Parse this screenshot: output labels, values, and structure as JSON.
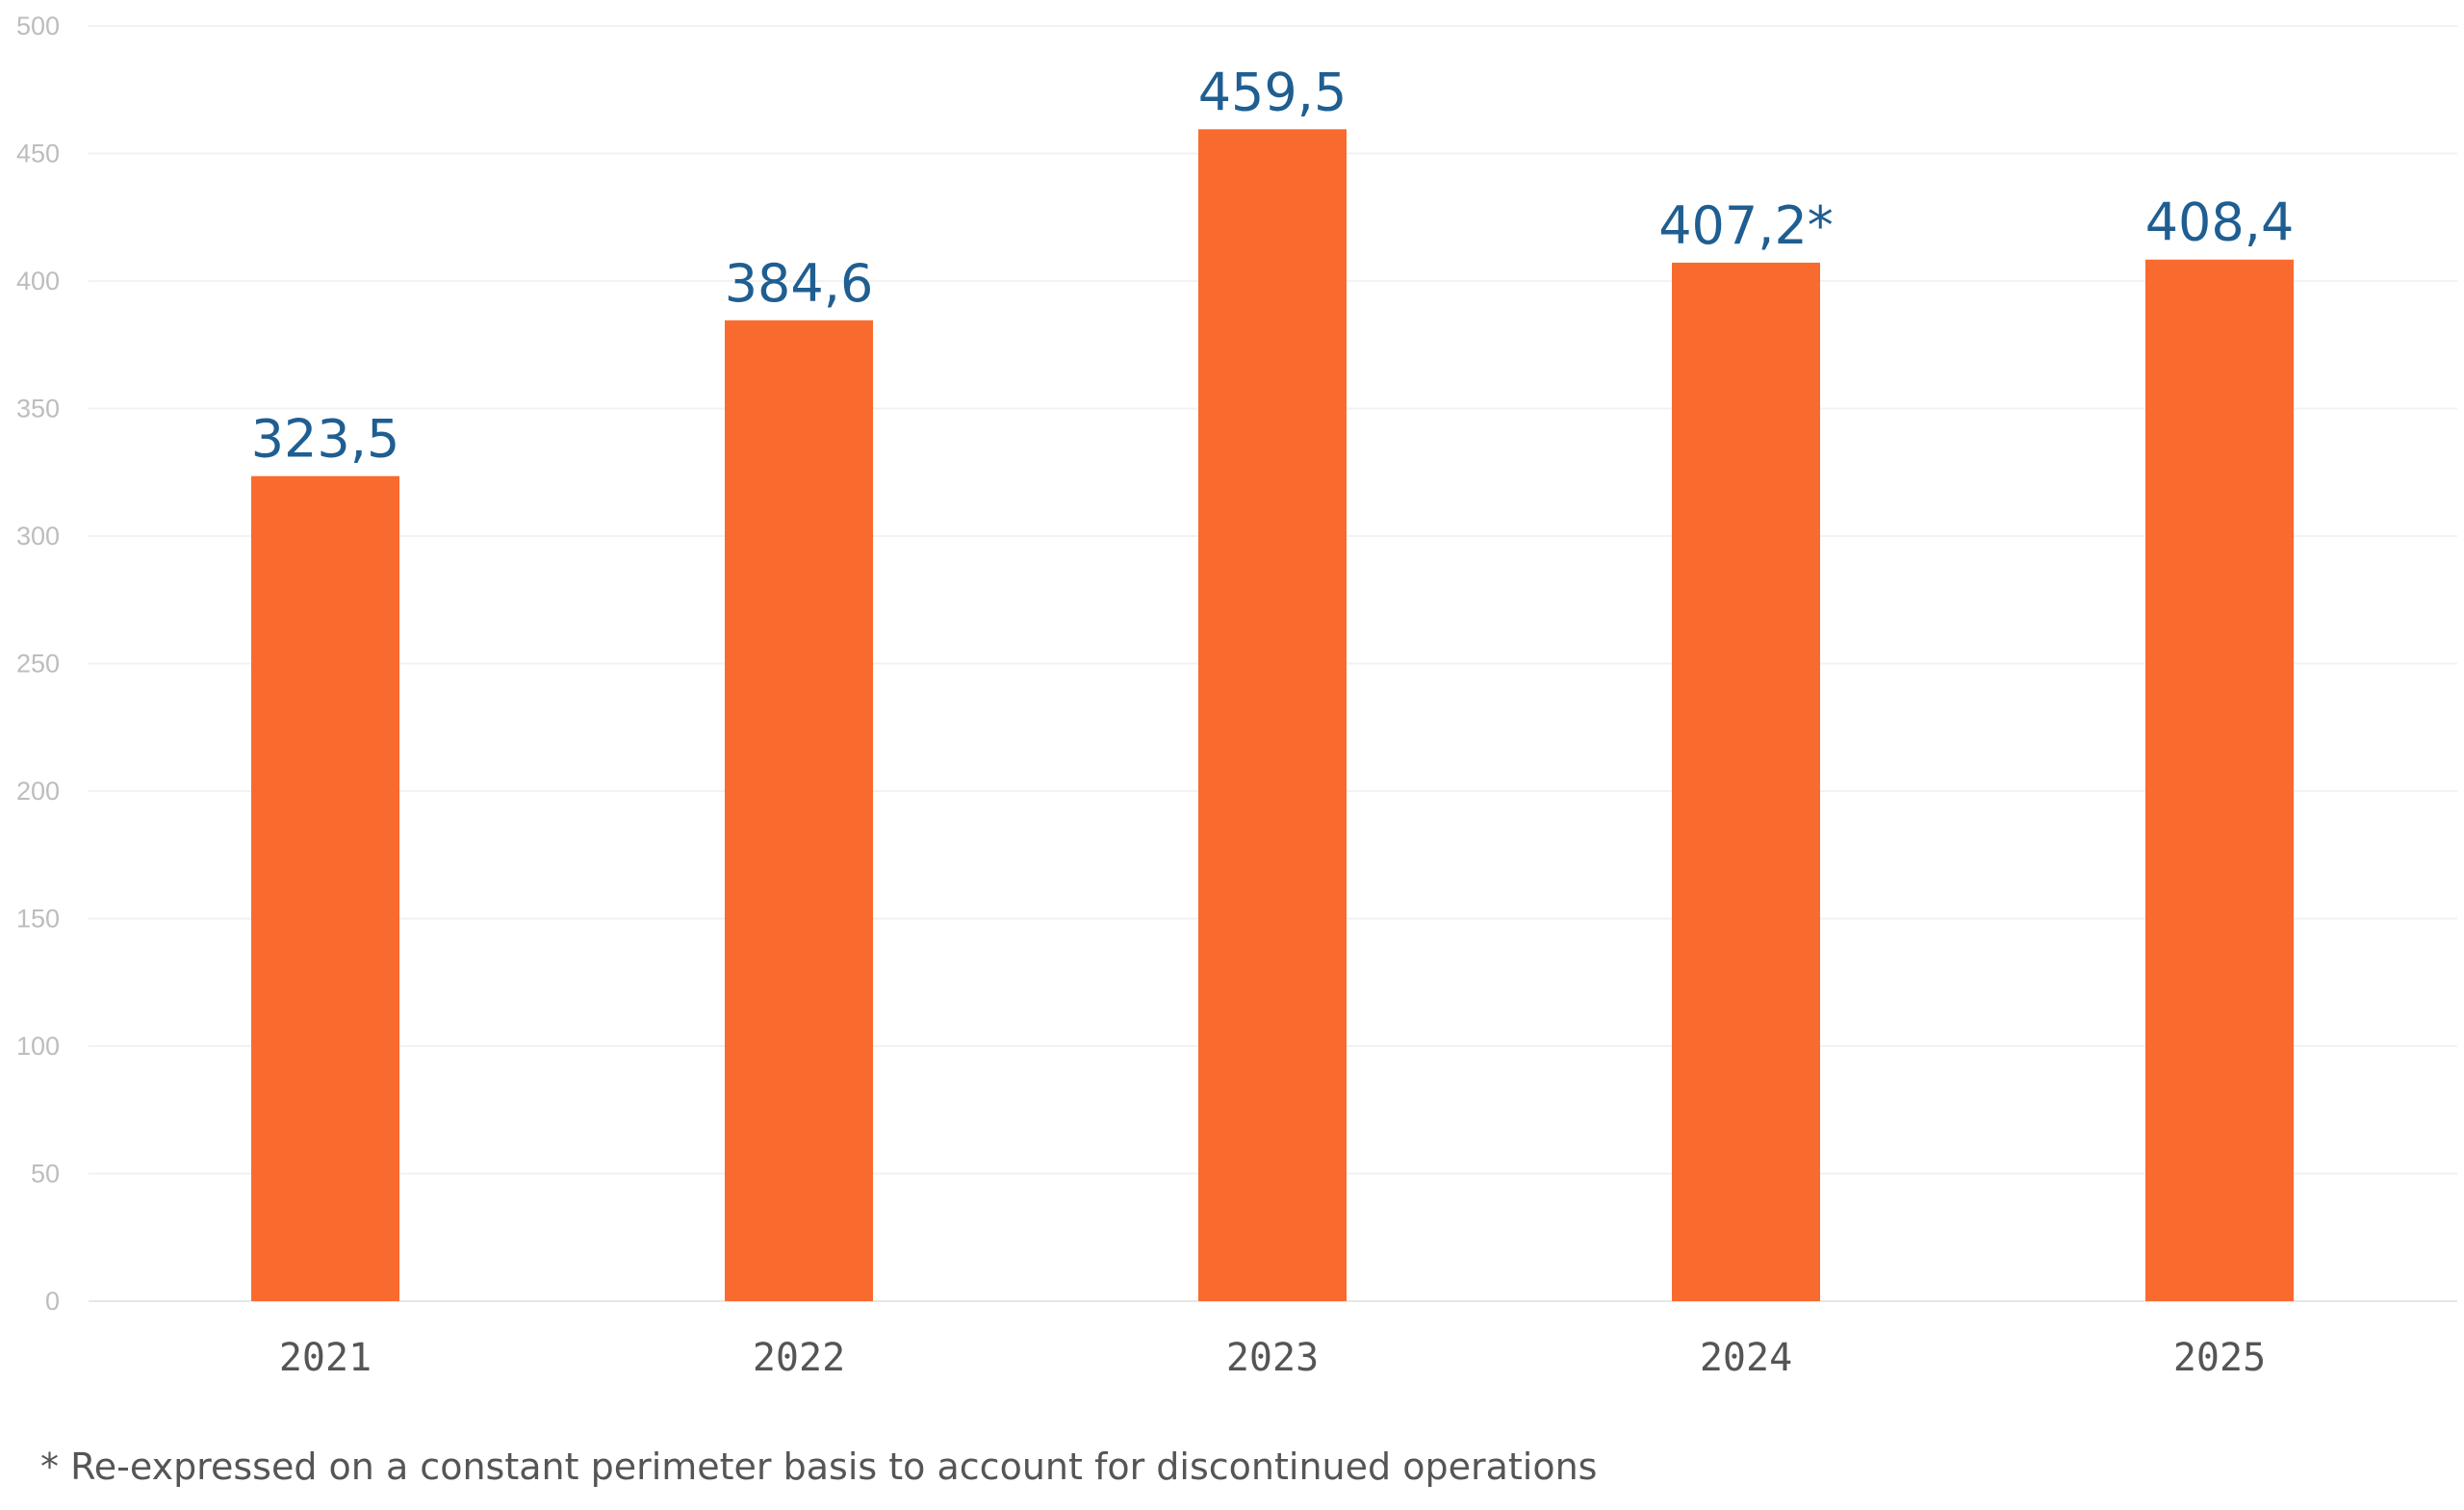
{
  "chart_data": {
    "type": "bar",
    "categories": [
      "2021",
      "2022",
      "2023",
      "2024",
      "2025"
    ],
    "values": [
      323.5,
      384.6,
      459.5,
      407.2,
      408.4
    ],
    "data_labels": [
      "323,5",
      "384,6",
      "459,5",
      "407,2*",
      "408,4"
    ],
    "y_ticks": [
      "0",
      "50",
      "100",
      "150",
      "200",
      "250",
      "300",
      "350",
      "400",
      "450",
      "500"
    ],
    "ylim": [
      0,
      500
    ],
    "grid": true,
    "bar_color": "#f96a2e",
    "label_color": "#1f5e91"
  },
  "footnote": "* Re-expressed on a constant perimeter basis to account for discontinued operations"
}
